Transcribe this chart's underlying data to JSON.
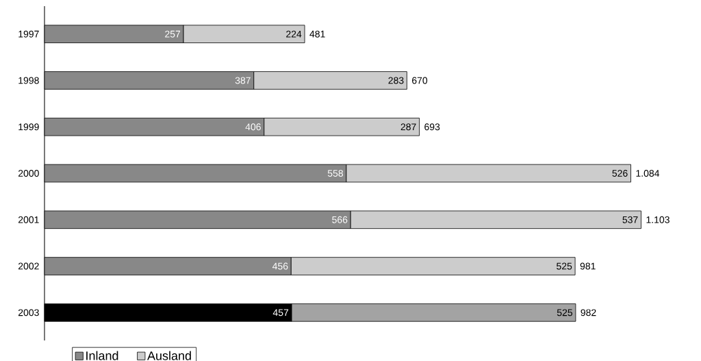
{
  "chart_data": {
    "type": "bar",
    "orientation": "horizontal",
    "stacked": true,
    "data_labels": true,
    "legend": "bottom",
    "categories": [
      "1997",
      "1998",
      "1999",
      "2000",
      "2001",
      "2002",
      "2003"
    ],
    "series": [
      {
        "name": "Inland",
        "color": "#888888",
        "colors": [
          "#888888",
          "#888888",
          "#888888",
          "#888888",
          "#888888",
          "#888888",
          "#000000"
        ],
        "values": [
          257,
          387,
          406,
          558,
          566,
          456,
          457
        ]
      },
      {
        "name": "Ausland",
        "color": "#cccccc",
        "colors": [
          "#cccccc",
          "#cccccc",
          "#cccccc",
          "#cccccc",
          "#cccccc",
          "#cccccc",
          "#a3a3a3"
        ],
        "values": [
          224,
          283,
          287,
          526,
          537,
          525,
          525
        ]
      }
    ],
    "totals": [
      "481",
      "670",
      "693",
      "1.084",
      "1.103",
      "981",
      "982"
    ]
  }
}
